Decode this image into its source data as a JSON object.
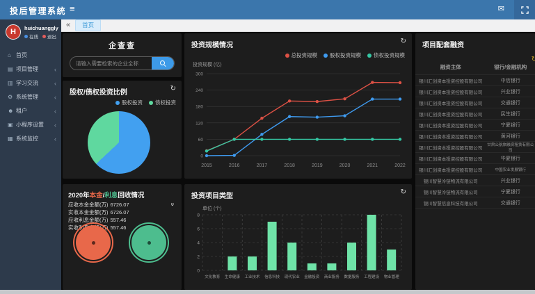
{
  "colors": {
    "navbar": "#3b76ac",
    "sidebar": "#2d3a4b",
    "panel": "#1d1d1d",
    "page_bg": "#0a0a0a",
    "accent_red": "#dd5145",
    "accent_blue": "#3f9bf0",
    "accent_teal": "#35c7a4",
    "bar_green": "#6fe3a8",
    "pie_blue": "#42a0f0",
    "pie_green": "#5fd89f",
    "gauge_orange": "#e8684a",
    "gauge_green": "#4dbd8e",
    "search_button": "#3d9ae8",
    "tab_active_text": "#3f9bd8",
    "table_refresh_yellow": "#c9a227"
  },
  "icons": {
    "hamburger": "≡",
    "mail": "✉",
    "back": "«",
    "refresh": "↻",
    "collapse": "»",
    "chevron": "‹"
  },
  "navbar": {
    "title": "投后管理系统"
  },
  "sidebar": {
    "user": {
      "name": "huichuanggly",
      "avatar_letter": "H",
      "online_label": "在线",
      "logout_label": "退出"
    },
    "items": [
      {
        "label": "首页",
        "glyph": "⌂",
        "icon_name": "home-icon",
        "expandable": false
      },
      {
        "label": "项目管理",
        "glyph": "▤",
        "icon_name": "project-icon",
        "expandable": true
      },
      {
        "label": "学习交流",
        "glyph": "▥",
        "icon_name": "study-icon",
        "expandable": true
      },
      {
        "label": "系统管理",
        "glyph": "⚙",
        "icon_name": "gear-icon",
        "expandable": true
      },
      {
        "label": "租户",
        "glyph": "☻",
        "icon_name": "user-icon",
        "expandable": true
      },
      {
        "label": "小程序设置",
        "glyph": "▣",
        "icon_name": "miniapp-icon",
        "expandable": true
      },
      {
        "label": "系统监控",
        "glyph": "▦",
        "icon_name": "monitor-icon",
        "expandable": true
      }
    ]
  },
  "tabs": {
    "active": "首页"
  },
  "search_panel": {
    "title": "企查查",
    "placeholder": "请输入需要检索的企业全称"
  },
  "pie_panel": {
    "title": "股权/债权投资比例"
  },
  "line_panel": {
    "title": "投资规模情况",
    "ylabel": "投资规模 (亿)"
  },
  "bar_panel": {
    "title": "投资项目类型",
    "unit": "单位 (个)"
  },
  "recovery_panel": {
    "title_prefix": "2020年",
    "title_principal": "本金",
    "title_slash": "/",
    "title_interest": "利息",
    "title_suffix": "回收情况",
    "stats": [
      {
        "label": "应收本金金额(万)",
        "value": "6726.07"
      },
      {
        "label": "实收本金金额(万)",
        "value": "6726.07"
      },
      {
        "label": "应收利息金额(万)",
        "value": "557.46"
      },
      {
        "label": "实收利息金额(万)",
        "value": "557.46"
      }
    ]
  },
  "financing_panel": {
    "title": "项目配套融资",
    "columns": [
      "融资主体",
      "银行/金融机构"
    ],
    "rows": [
      [
        "银川汇创资本投资控股有限公司",
        "中信银行"
      ],
      [
        "银川汇创资本投资控股有限公司",
        "兴业银行"
      ],
      [
        "银川汇创资本投资控股有限公司",
        "交通银行"
      ],
      [
        "银川汇创资本投资控股有限公司",
        "民生银行"
      ],
      [
        "银川汇创资本投资控股有限公司",
        "宁夏银行"
      ],
      [
        "银川汇创资本投资控股有限公司",
        "黄河银行"
      ],
      [
        "银川汇创资本投资控股有限公司",
        "甘肃公航旅融资租赁有限公司"
      ],
      [
        "银川汇创资本投资控股有限公司",
        "华夏银行"
      ],
      [
        "银川汇创资本投资控股有限公司",
        "中国农业发展银行"
      ],
      [
        "银川智慧冷链物流有限公司",
        "兴业银行"
      ],
      [
        "银川智慧冷链物流有限公司",
        "宁夏银行"
      ],
      [
        "银川智慧信息科技有限公司",
        "交通银行"
      ]
    ]
  },
  "chart_data": [
    {
      "id": "investment_scale",
      "type": "line",
      "title": "投资规模情况",
      "ylabel": "投资规模 (亿)",
      "x": [
        "2015",
        "2016",
        "2017",
        "2018",
        "2019",
        "2020",
        "2021",
        "2022"
      ],
      "ylim": [
        0,
        300
      ],
      "yticks": [
        0,
        60,
        120,
        180,
        240,
        300
      ],
      "grid": true,
      "legend_position": "top-right",
      "series": [
        {
          "name": "总投资规模",
          "color": "#dd5145",
          "values": [
            18,
            60,
            137,
            200,
            198,
            208,
            268,
            267
          ]
        },
        {
          "name": "股权投资规模",
          "color": "#3f9bf0",
          "values": [
            0,
            1,
            78,
            143,
            141,
            146,
            207,
            207
          ]
        },
        {
          "name": "债权投资规模",
          "color": "#35c7a4",
          "values": [
            17,
            60,
            60,
            60,
            60,
            60,
            60,
            60
          ]
        }
      ]
    },
    {
      "id": "equity_debt_ratio",
      "type": "pie",
      "title": "股权/债权投资比例",
      "slices": [
        {
          "name": "股权投资",
          "color": "#42a0f0",
          "pct": 63
        },
        {
          "name": "债权投资",
          "color": "#5fd89f",
          "pct": 37
        }
      ]
    },
    {
      "id": "project_types",
      "type": "bar",
      "title": "投资项目类型",
      "unit_label": "单位 (个)",
      "categories": [
        "文化教育",
        "生命健康",
        "工业技术",
        "信息科技",
        "现代农业",
        "金融投资",
        "商业服务",
        "数据服务",
        "工程建设",
        "物业管理"
      ],
      "values": [
        0,
        2,
        2,
        7,
        4,
        1,
        1,
        4,
        8,
        3
      ],
      "ylim": [
        0,
        8
      ],
      "yticks": [
        0,
        2,
        4,
        6,
        8
      ],
      "bar_color": "#6fe3a8",
      "grid": "dashed"
    },
    {
      "id": "recovery_gauges",
      "type": "gauge",
      "gauges": [
        {
          "name": "本金回收",
          "color": "#e8684a"
        },
        {
          "name": "利息回收",
          "color": "#4dbd8e"
        }
      ]
    }
  ]
}
